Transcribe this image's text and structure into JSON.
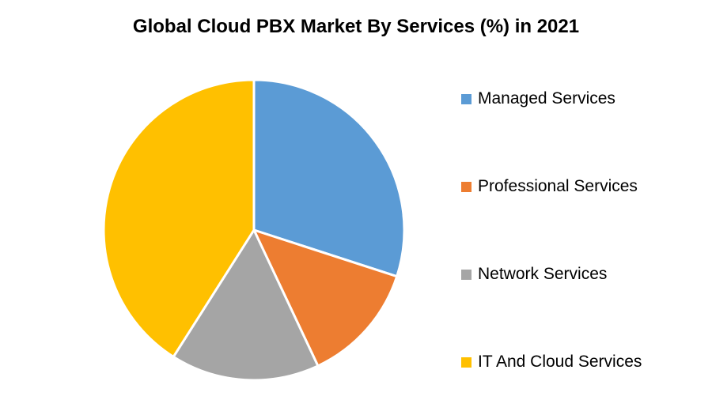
{
  "chart_data": {
    "type": "pie",
    "title": "Global Cloud PBX Market By Services (%) in 2021",
    "legend_position": "right",
    "slices": [
      {
        "label": "Managed Services",
        "value": 30,
        "color": "#5B9BD5"
      },
      {
        "label": "Professional Services",
        "value": 13,
        "color": "#ED7D31"
      },
      {
        "label": "Network Services",
        "value": 16,
        "color": "#A5A5A5"
      },
      {
        "label": "IT And Cloud Services",
        "value": 41,
        "color": "#FFC000"
      }
    ]
  }
}
